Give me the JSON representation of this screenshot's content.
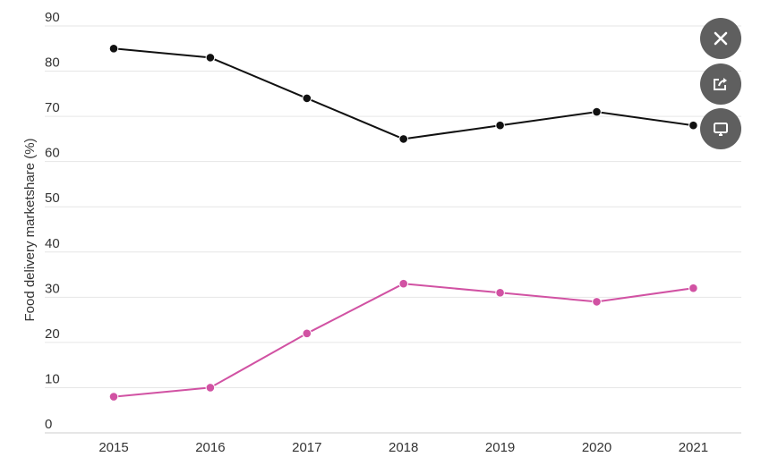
{
  "chart_data": {
    "type": "line",
    "title": "",
    "xlabel": "",
    "ylabel": "Food delivery marketshare (%)",
    "categories": [
      "2015",
      "2016",
      "2017",
      "2018",
      "2019",
      "2020",
      "2021"
    ],
    "yticks": [
      "0",
      "10",
      "20",
      "30",
      "40",
      "50",
      "60",
      "70",
      "80",
      "90"
    ],
    "ylim": [
      0,
      90
    ],
    "grid": true,
    "series": [
      {
        "color": "#111111",
        "values": [
          85,
          83,
          74,
          65,
          68,
          71,
          68
        ]
      },
      {
        "color": "#d152a3",
        "values": [
          8,
          10,
          22,
          33,
          31,
          29,
          32
        ]
      }
    ]
  },
  "toolbar": {
    "close_icon": "close-icon",
    "share_icon": "share-icon",
    "present_icon": "present-icon"
  }
}
